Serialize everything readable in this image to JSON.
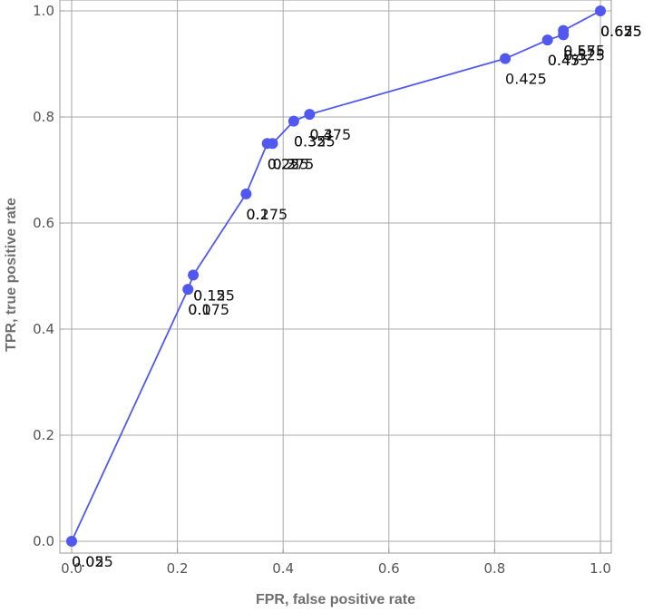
{
  "chart_data": {
    "type": "line",
    "title": "",
    "xlabel": "FPR, false positive rate",
    "ylabel": "TPR, true positive rate",
    "xlim": [
      0,
      1
    ],
    "ylim": [
      0,
      1
    ],
    "xticks": [
      "0.0",
      "0.2",
      "0.4",
      "0.6",
      "0.8",
      "1.0"
    ],
    "yticks": [
      "0.0",
      "0.2",
      "0.4",
      "0.6",
      "0.8",
      "1.0"
    ],
    "grid": true,
    "line_color": "#5058f0",
    "series": [
      {
        "points": [
          {
            "x": 0.0,
            "y": 0.0,
            "labels": [
              "0.025",
              "0.05"
            ]
          },
          {
            "x": 0.22,
            "y": 0.475,
            "labels": [
              "0.1",
              "0.075"
            ]
          },
          {
            "x": 0.23,
            "y": 0.502,
            "labels": [
              "0.125",
              "0.15"
            ]
          },
          {
            "x": 0.33,
            "y": 0.655,
            "labels": [
              "0.2",
              "0.175"
            ]
          },
          {
            "x": 0.37,
            "y": 0.75,
            "labels": [
              "0.225",
              "0.25"
            ]
          },
          {
            "x": 0.38,
            "y": 0.75,
            "labels": [
              "0.275",
              "0.3"
            ]
          },
          {
            "x": 0.42,
            "y": 0.792,
            "labels": [
              "0.325",
              "0.35"
            ]
          },
          {
            "x": 0.45,
            "y": 0.805,
            "labels": [
              "0.375",
              "0.4"
            ]
          },
          {
            "x": 0.82,
            "y": 0.91,
            "labels": [
              "0.425"
            ]
          },
          {
            "x": 0.9,
            "y": 0.945,
            "labels": [
              "0.45",
              "0.475"
            ]
          },
          {
            "x": 0.93,
            "y": 0.955,
            "labels": [
              "0.5",
              "0.525"
            ]
          },
          {
            "x": 0.93,
            "y": 0.963,
            "labels": [
              "0.55",
              "0.575"
            ]
          },
          {
            "x": 1.0,
            "y": 1.0,
            "labels": [
              "0.6",
              "0.625",
              "0.65",
              "0.675"
            ]
          }
        ]
      }
    ]
  }
}
